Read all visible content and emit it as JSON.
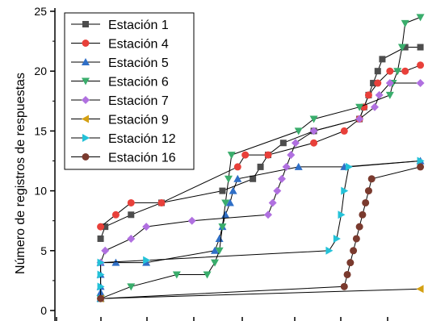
{
  "chart_data": {
    "type": "line",
    "ylabel": "Número de registros de respuestas",
    "xlabel": "",
    "ylim": [
      0,
      25
    ],
    "yticks": [
      "0",
      "5",
      "10",
      "15",
      "20",
      "25"
    ],
    "grid": false,
    "legend_position": "top-left",
    "series": [
      {
        "name": "Estación 1",
        "color": "#4d4d4d",
        "marker": "square",
        "points": [
          [
            3,
            6
          ],
          [
            3.3,
            7
          ],
          [
            5,
            8
          ],
          [
            7,
            9
          ],
          [
            11,
            10
          ],
          [
            13,
            11
          ],
          [
            13.5,
            12
          ],
          [
            14,
            13
          ],
          [
            15,
            14
          ],
          [
            17,
            15
          ],
          [
            20,
            16
          ],
          [
            20.3,
            17
          ],
          [
            20.6,
            18
          ],
          [
            20.9,
            19
          ],
          [
            21.2,
            20
          ],
          [
            21.5,
            21
          ],
          [
            23,
            22
          ],
          [
            24,
            22
          ]
        ]
      },
      {
        "name": "Estación 4",
        "color": "#e8403a",
        "marker": "circle",
        "points": [
          [
            3,
            7
          ],
          [
            4,
            8
          ],
          [
            5,
            9
          ],
          [
            7,
            9
          ],
          [
            12,
            12
          ],
          [
            12.5,
            13
          ],
          [
            14,
            13
          ],
          [
            17,
            14
          ],
          [
            19,
            15
          ],
          [
            20,
            16
          ],
          [
            20.3,
            17
          ],
          [
            20.6,
            18
          ],
          [
            21.2,
            19
          ],
          [
            22,
            20
          ],
          [
            23,
            20
          ],
          [
            24,
            20.5
          ]
        ]
      },
      {
        "name": "Estación 5",
        "color": "#2f6fc7",
        "marker": "triangle-up",
        "points": [
          [
            3,
            1
          ],
          [
            3,
            1.5
          ],
          [
            3,
            2
          ],
          [
            3,
            3
          ],
          [
            3,
            4
          ],
          [
            4,
            4
          ],
          [
            6,
            4
          ],
          [
            10.5,
            5
          ],
          [
            10.8,
            6
          ],
          [
            11,
            7
          ],
          [
            11.2,
            8
          ],
          [
            11.5,
            9
          ],
          [
            11.7,
            10
          ],
          [
            12,
            11
          ],
          [
            16,
            12
          ],
          [
            19,
            12
          ],
          [
            24,
            12.5
          ]
        ]
      },
      {
        "name": "Estación 6",
        "color": "#3aad6c",
        "marker": "triangle-down",
        "points": [
          [
            3,
            1
          ],
          [
            5,
            2
          ],
          [
            8,
            3
          ],
          [
            10,
            3
          ],
          [
            10.5,
            4
          ],
          [
            10.8,
            5
          ],
          [
            11,
            7
          ],
          [
            11.2,
            9
          ],
          [
            11.4,
            11
          ],
          [
            11.6,
            13
          ],
          [
            16,
            15
          ],
          [
            17,
            16
          ],
          [
            20,
            17
          ],
          [
            22,
            18
          ],
          [
            22.2,
            19
          ],
          [
            22.5,
            20
          ],
          [
            22.8,
            22
          ],
          [
            23,
            24
          ],
          [
            24,
            24.5
          ]
        ]
      },
      {
        "name": "Estación 7",
        "color": "#b070e0",
        "marker": "diamond",
        "points": [
          [
            3,
            4
          ],
          [
            3.3,
            5
          ],
          [
            5,
            6
          ],
          [
            6,
            7
          ],
          [
            9,
            7.5
          ],
          [
            14,
            8
          ],
          [
            14.3,
            9
          ],
          [
            14.6,
            10
          ],
          [
            14.9,
            11
          ],
          [
            15.2,
            12
          ],
          [
            15.5,
            13
          ],
          [
            15.8,
            14
          ],
          [
            17,
            15
          ],
          [
            20,
            16
          ],
          [
            21,
            17
          ],
          [
            21.3,
            18
          ],
          [
            22,
            19
          ],
          [
            24,
            19
          ]
        ]
      },
      {
        "name": "Estación 9",
        "color": "#d4a012",
        "marker": "triangle-left",
        "points": [
          [
            3,
            1
          ],
          [
            24,
            1.8
          ]
        ]
      },
      {
        "name": "Estación 12",
        "color": "#23c2d8",
        "marker": "triangle-right",
        "points": [
          [
            3,
            1
          ],
          [
            3,
            2
          ],
          [
            3,
            3
          ],
          [
            3,
            4
          ],
          [
            6,
            4.2
          ],
          [
            18,
            5
          ],
          [
            18.5,
            6
          ],
          [
            18.8,
            8
          ],
          [
            19,
            10
          ],
          [
            19.3,
            12
          ],
          [
            24,
            12.5
          ]
        ]
      },
      {
        "name": "Estación 16",
        "color": "#7a3a2e",
        "marker": "circle",
        "points": [
          [
            3,
            1
          ],
          [
            19,
            2
          ],
          [
            19.2,
            3
          ],
          [
            19.4,
            4
          ],
          [
            19.6,
            5
          ],
          [
            19.8,
            6
          ],
          [
            20,
            7
          ],
          [
            20.2,
            8
          ],
          [
            20.4,
            9
          ],
          [
            20.6,
            10
          ],
          [
            20.8,
            11
          ],
          [
            24,
            12
          ]
        ]
      }
    ]
  }
}
